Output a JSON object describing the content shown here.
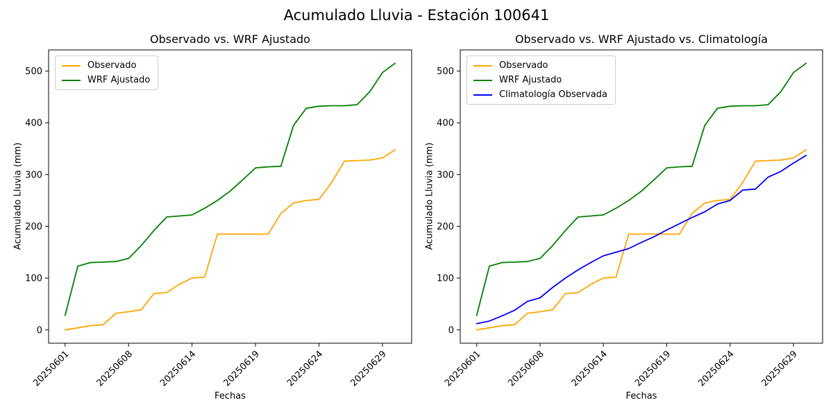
{
  "title": "Acumulado Lluvia - Estación 100641",
  "chart_data": [
    {
      "type": "line",
      "title": "Observado vs. WRF Ajustado",
      "xlabel": "Fechas",
      "ylabel": "Acumulado Lluvia (mm)",
      "x_tick_labels": [
        "20250601",
        "20250608",
        "20250614",
        "20250619",
        "20250624",
        "20250629"
      ],
      "x_tick_indices": [
        0,
        5,
        10,
        15,
        20,
        25
      ],
      "y_ticks": [
        0,
        100,
        200,
        300,
        400,
        500
      ],
      "ylim_data": [
        0,
        515
      ],
      "grid": false,
      "legend_position": "upper left",
      "series": [
        {
          "name": "Observado",
          "color": "#FFA500",
          "values": [
            0,
            4,
            8,
            10,
            32,
            35,
            39,
            70,
            72,
            88,
            100,
            102,
            185,
            185,
            185,
            185,
            185,
            225,
            245,
            250,
            252,
            285,
            326,
            327,
            328,
            332,
            348
          ]
        },
        {
          "name": "WRF Ajustado",
          "color": "#008000",
          "values": [
            28,
            123,
            130,
            131,
            132,
            138,
            163,
            192,
            218,
            220,
            222,
            235,
            250,
            268,
            290,
            313,
            315,
            316,
            395,
            428,
            432,
            433,
            433,
            435,
            460,
            497,
            515
          ]
        }
      ]
    },
    {
      "type": "line",
      "title": "Observado vs. WRF Ajustado vs. Climatología",
      "xlabel": "Fechas",
      "ylabel": "Acumulado Lluvia (mm)",
      "x_tick_labels": [
        "20250601",
        "20250608",
        "20250614",
        "20250619",
        "20250624",
        "20250629"
      ],
      "x_tick_indices": [
        0,
        5,
        10,
        15,
        20,
        25
      ],
      "y_ticks": [
        0,
        100,
        200,
        300,
        400,
        500
      ],
      "ylim_data": [
        0,
        515
      ],
      "grid": false,
      "legend_position": "upper left",
      "series": [
        {
          "name": "Observado",
          "color": "#FFA500",
          "values": [
            0,
            4,
            8,
            10,
            32,
            35,
            39,
            70,
            72,
            88,
            100,
            102,
            185,
            185,
            185,
            185,
            185,
            225,
            245,
            250,
            252,
            285,
            326,
            327,
            328,
            332,
            348
          ]
        },
        {
          "name": "WRF Ajustado",
          "color": "#008000",
          "values": [
            28,
            123,
            130,
            131,
            132,
            138,
            163,
            192,
            218,
            220,
            222,
            235,
            250,
            268,
            290,
            313,
            315,
            316,
            395,
            428,
            432,
            433,
            433,
            435,
            460,
            497,
            515
          ]
        },
        {
          "name": "Climatología Observada",
          "color": "#0000FF",
          "values": [
            12,
            17,
            27,
            38,
            55,
            62,
            82,
            100,
            116,
            130,
            143,
            150,
            157,
            169,
            180,
            193,
            205,
            217,
            228,
            243,
            250,
            270,
            272,
            295,
            306,
            322,
            337
          ]
        }
      ]
    }
  ]
}
